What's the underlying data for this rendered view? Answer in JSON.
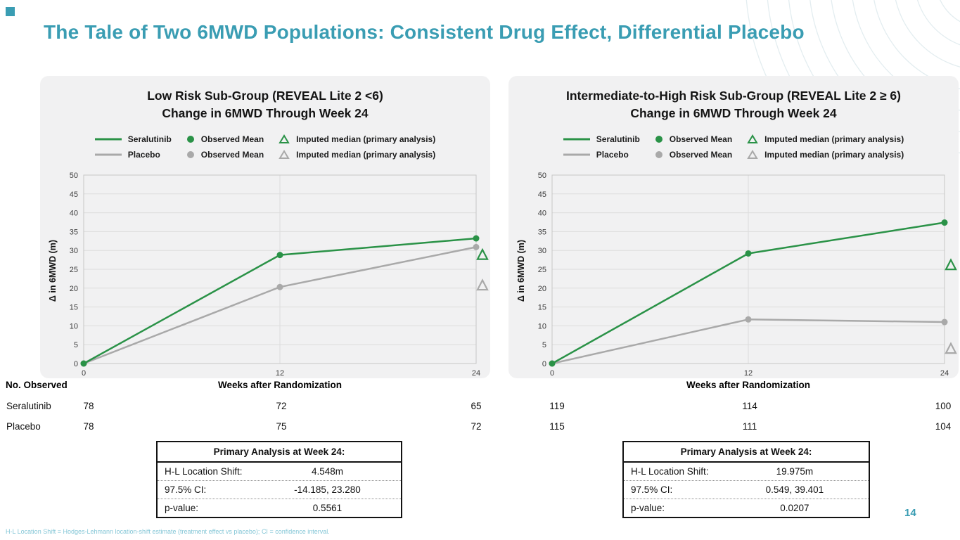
{
  "slide": {
    "title": "The Tale of Two 6MWD Populations: Consistent Drug Effect, Differential Placebo",
    "page_number": "14",
    "footnote": "H-L Location Shift = Hodges-Lehmann location-shift estimate (treatment effect vs placebo); CI = confidence interval.",
    "colors": {
      "accent_teal": "#3a9db3",
      "seralutinib_green": "#2a9247",
      "placebo_gray": "#a9a9a9",
      "panel_background": "#f1f1f2"
    }
  },
  "panels": [
    {
      "title_line1": "Low Risk Sub-Group (REVEAL Lite 2 <6)",
      "title_line2": "Change in 6MWD Through Week 24",
      "legend_rows": [
        {
          "series": "Seralutinib",
          "observed": "Observed Mean",
          "imputed": "Imputed median (primary analysis)"
        },
        {
          "series": "Placebo",
          "observed": "Observed Mean",
          "imputed": "Imputed median (primary analysis)"
        }
      ],
      "yaxis_label": "Δ in 6MWD (m)",
      "xaxis_label": "Weeks after Randomization",
      "observed_header": "No. Observed",
      "observed_rows": [
        {
          "label": "Seralutinib",
          "values": [
            "78",
            "72",
            "65"
          ]
        },
        {
          "label": "Placebo",
          "values": [
            "78",
            "75",
            "72"
          ]
        }
      ],
      "analysis": {
        "header": "Primary Analysis at Week 24:",
        "rows": [
          {
            "label": "H-L Location Shift:",
            "value": "4.548m"
          },
          {
            "label": "97.5% CI:",
            "value": "-14.185, 23.280"
          },
          {
            "label": "p-value:",
            "value": "0.5561"
          }
        ]
      }
    },
    {
      "title_line1": "Intermediate-to-High Risk Sub-Group (REVEAL Lite 2 ≥ 6)",
      "title_line2": "Change in 6MWD Through Week 24",
      "legend_rows": [
        {
          "series": "Seralutinib",
          "observed": "Observed Mean",
          "imputed": "Imputed median (primary analysis)"
        },
        {
          "series": "Placebo",
          "observed": "Observed Mean",
          "imputed": "Imputed median (primary analysis)"
        }
      ],
      "yaxis_label": "Δ in 6MWD (m)",
      "xaxis_label": "Weeks after Randomization",
      "observed_rows": [
        {
          "values": [
            "119",
            "114",
            "100"
          ]
        },
        {
          "values": [
            "115",
            "111",
            "104"
          ]
        }
      ],
      "analysis": {
        "header": "Primary Analysis at Week 24:",
        "rows": [
          {
            "label": "H-L Location Shift:",
            "value": "19.975m"
          },
          {
            "label": "97.5% CI:",
            "value": "0.549, 39.401"
          },
          {
            "label": "p-value:",
            "value": "0.0207"
          }
        ]
      }
    }
  ],
  "chart_data": [
    {
      "type": "line",
      "title": "Low Risk Sub-Group (REVEAL Lite 2 <6) Change in 6MWD Through Week 24",
      "xlabel": "Weeks after Randomization",
      "ylabel": "Δ in 6MWD (m)",
      "x": [
        0,
        12,
        24
      ],
      "xticks": [
        0,
        12,
        24
      ],
      "xlim": [
        0,
        24
      ],
      "ylim": [
        0,
        50
      ],
      "yticks": [
        0,
        5,
        10,
        15,
        20,
        25,
        30,
        35,
        40,
        45,
        50
      ],
      "grid": true,
      "legend_position": "top",
      "series": [
        {
          "name": "Seralutinib Observed Mean",
          "color": "#2a9247",
          "values": [
            0,
            28.8,
            33.2
          ]
        },
        {
          "name": "Placebo Observed Mean",
          "color": "#a9a9a9",
          "values": [
            0,
            20.3,
            30.9
          ]
        }
      ],
      "imputed_medians": [
        {
          "name": "Seralutinib imputed median (primary analysis)",
          "color": "#2a9247",
          "x": 24,
          "value": 28.8
        },
        {
          "name": "Placebo imputed median (primary analysis)",
          "color": "#a9a9a9",
          "x": 24,
          "value": 20.7
        }
      ]
    },
    {
      "type": "line",
      "title": "Intermediate-to-High Risk Sub-Group (REVEAL Lite 2 ≥ 6) Change in 6MWD Through Week 24",
      "xlabel": "Weeks after Randomization",
      "ylabel": "Δ in 6MWD (m)",
      "x": [
        0,
        12,
        24
      ],
      "xticks": [
        0,
        12,
        24
      ],
      "xlim": [
        0,
        24
      ],
      "ylim": [
        0,
        50
      ],
      "yticks": [
        0,
        5,
        10,
        15,
        20,
        25,
        30,
        35,
        40,
        45,
        50
      ],
      "grid": true,
      "legend_position": "top",
      "series": [
        {
          "name": "Seralutinib Observed Mean",
          "color": "#2a9247",
          "values": [
            0,
            29.2,
            37.4
          ]
        },
        {
          "name": "Placebo Observed Mean",
          "color": "#a9a9a9",
          "values": [
            0,
            11.7,
            11.0
          ]
        }
      ],
      "imputed_medians": [
        {
          "name": "Seralutinib imputed median (primary analysis)",
          "color": "#2a9247",
          "x": 24,
          "value": 26.1
        },
        {
          "name": "Placebo imputed median (primary analysis)",
          "color": "#a9a9a9",
          "x": 24,
          "value": 3.9
        }
      ]
    }
  ]
}
